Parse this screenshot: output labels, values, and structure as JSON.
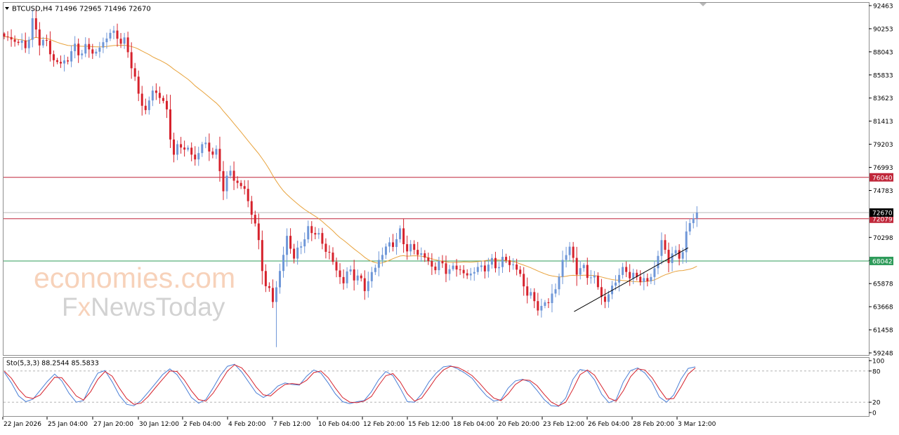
{
  "chart_data": [
    {
      "type": "candlestick",
      "symbol_header": "BTCUSD,H4  71496 72965 71496 72670",
      "y_ticks": [
        92463,
        90253,
        88043,
        85833,
        83623,
        81413,
        79203,
        76993,
        74783,
        70298,
        68088,
        65878,
        63668,
        61458,
        59248
      ],
      "ylim": [
        59248,
        92463
      ],
      "x_ticks": [
        "22 Jan 2026",
        "25 Jan 04:00",
        "27 Jan 20:00",
        "30 Jan 12:00",
        "2 Feb 04:00",
        "4 Feb 20:00",
        "7 Feb 12:00",
        "10 Feb 04:00",
        "12 Feb 20:00",
        "15 Feb 12:00",
        "18 Feb 04:00",
        "20 Feb 20:00",
        "23 Feb 12:00",
        "26 Feb 04:00",
        "28 Feb 20:00",
        "3 Mar 12:00"
      ],
      "current_price": 72670,
      "current_price_label": "72670",
      "horizontal_levels": [
        {
          "value": 76040,
          "label": "76040",
          "color": "#c0273a"
        },
        {
          "value": 72079,
          "label": "72079",
          "color": "#c0273a"
        },
        {
          "value": 68042,
          "label": "68042",
          "color": "#2e9b5a"
        }
      ],
      "trendline": {
        "from": [
          "26 Feb 04:00",
          63200
        ],
        "to": [
          "3 Mar 20:00",
          69300
        ],
        "color": "#000000"
      },
      "moving_average": {
        "color": "#e8a33d"
      },
      "candle_colors": {
        "up": "#6f97d8",
        "down": "#d6222c"
      },
      "ohlc_path": [
        [
          0,
          89500
        ],
        [
          4,
          89000
        ],
        [
          6,
          88500
        ],
        [
          8,
          90800
        ],
        [
          10,
          89200
        ],
        [
          12,
          88800
        ],
        [
          14,
          87300
        ],
        [
          16,
          86800
        ],
        [
          18,
          87500
        ],
        [
          20,
          88400
        ],
        [
          22,
          88000
        ],
        [
          24,
          88500
        ],
        [
          26,
          87800
        ],
        [
          28,
          89000
        ],
        [
          30,
          89900
        ],
        [
          32,
          89500
        ],
        [
          34,
          88900
        ],
        [
          36,
          87000
        ],
        [
          38,
          83800
        ],
        [
          40,
          82500
        ],
        [
          42,
          84200
        ],
        [
          44,
          84000
        ],
        [
          46,
          82200
        ],
        [
          48,
          78200
        ],
        [
          50,
          79200
        ],
        [
          52,
          78600
        ],
        [
          54,
          77800
        ],
        [
          56,
          79200
        ],
        [
          58,
          78800
        ],
        [
          60,
          78200
        ],
        [
          62,
          75200
        ],
        [
          64,
          76500
        ],
        [
          66,
          75500
        ],
        [
          68,
          74800
        ],
        [
          70,
          72800
        ],
        [
          72,
          69800
        ],
        [
          74,
          65500
        ],
        [
          76,
          64500
        ],
        [
          78,
          66800
        ],
        [
          80,
          70500
        ],
        [
          82,
          68200
        ],
        [
          84,
          69800
        ],
        [
          86,
          70800
        ],
        [
          88,
          71000
        ],
        [
          90,
          69600
        ],
        [
          92,
          68800
        ],
        [
          94,
          67000
        ],
        [
          96,
          66200
        ],
        [
          98,
          67100
        ],
        [
          100,
          66400
        ],
        [
          102,
          65600
        ],
        [
          104,
          66700
        ],
        [
          106,
          68200
        ],
        [
          108,
          69300
        ],
        [
          110,
          69800
        ],
        [
          112,
          70600
        ],
        [
          114,
          69300
        ],
        [
          116,
          69100
        ],
        [
          118,
          68700
        ],
        [
          120,
          67900
        ],
        [
          122,
          67400
        ],
        [
          124,
          67800
        ],
        [
          126,
          66900
        ],
        [
          128,
          67700
        ],
        [
          130,
          66600
        ],
        [
          132,
          66900
        ],
        [
          134,
          67300
        ],
        [
          136,
          67500
        ],
        [
          138,
          67800
        ],
        [
          140,
          67700
        ],
        [
          142,
          68200
        ],
        [
          144,
          67600
        ],
        [
          146,
          66700
        ],
        [
          148,
          64900
        ],
        [
          150,
          64300
        ],
        [
          152,
          63300
        ],
        [
          154,
          64500
        ],
        [
          156,
          65100
        ],
        [
          158,
          68200
        ],
        [
          160,
          69200
        ],
        [
          162,
          67200
        ],
        [
          164,
          67200
        ],
        [
          166,
          66600
        ],
        [
          168,
          65700
        ],
        [
          170,
          64000
        ],
        [
          172,
          65600
        ],
        [
          174,
          66800
        ],
        [
          176,
          67200
        ],
        [
          178,
          66400
        ],
        [
          180,
          66500
        ],
        [
          182,
          65900
        ],
        [
          184,
          67400
        ],
        [
          186,
          69800
        ],
        [
          188,
          68300
        ],
        [
          190,
          68700
        ],
        [
          192,
          68900
        ],
        [
          194,
          71900
        ],
        [
          196,
          72670
        ]
      ]
    },
    {
      "type": "line",
      "indicator_header": "Sto(5,3,3) 88.2544 85.5833",
      "y_ticks": [
        100,
        80,
        20,
        0
      ],
      "ylim": [
        0,
        100
      ],
      "levels": [
        80,
        20
      ],
      "series": [
        {
          "color": "#4a7fd6",
          "values": [
            78,
            57,
            32,
            21,
            26,
            43,
            60,
            74,
            61,
            37,
            20,
            23,
            52,
            76,
            81,
            59,
            33,
            16,
            13,
            23,
            39,
            56,
            73,
            84,
            73,
            52,
            29,
            18,
            25,
            47,
            71,
            89,
            93,
            78,
            58,
            38,
            29,
            37,
            51,
            57,
            54,
            53,
            70,
            82,
            76,
            57,
            36,
            21,
            17,
            21,
            23,
            40,
            63,
            79,
            71,
            47,
            21,
            20,
            36,
            59,
            76,
            88,
            90,
            84,
            76,
            66,
            48,
            32,
            22,
            25,
            47,
            61,
            64,
            59,
            43,
            25,
            13,
            12,
            28,
            64,
            83,
            80,
            63,
            35,
            19,
            25,
            59,
            81,
            86,
            76,
            58,
            30,
            20,
            34,
            64,
            85,
            88
          ]
        },
        {
          "color": "#d6222c",
          "values": [
            80,
            66,
            45,
            30,
            27,
            34,
            51,
            68,
            67,
            50,
            32,
            24,
            40,
            64,
            79,
            70,
            47,
            27,
            16,
            18,
            31,
            48,
            64,
            80,
            79,
            63,
            42,
            25,
            22,
            37,
            58,
            80,
            92,
            86,
            69,
            49,
            34,
            32,
            44,
            54,
            56,
            54,
            62,
            77,
            80,
            67,
            47,
            29,
            20,
            19,
            22,
            31,
            52,
            71,
            75,
            59,
            36,
            22,
            28,
            47,
            67,
            82,
            89,
            87,
            80,
            71,
            57,
            41,
            28,
            23,
            36,
            54,
            63,
            62,
            52,
            35,
            20,
            13,
            20,
            45,
            73,
            82,
            72,
            50,
            28,
            22,
            42,
            69,
            84,
            82,
            67,
            45,
            26,
            27,
            49,
            74,
            86
          ]
        }
      ]
    }
  ],
  "watermark": {
    "line1": "economies.com",
    "line2_prefix": "F",
    "line2_x": "x",
    "line2_suffix": "NewsToday"
  }
}
